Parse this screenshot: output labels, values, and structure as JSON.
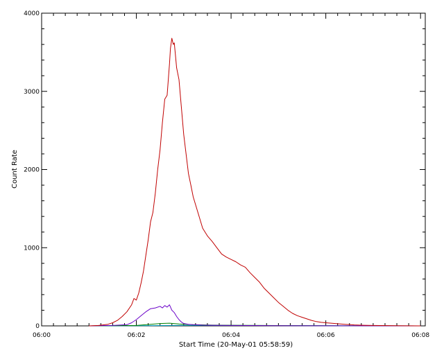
{
  "chart_data": {
    "type": "line",
    "title": "",
    "xlabel": "Start Time (20-May-01 05:58:59)",
    "ylabel": "Count Rate",
    "x_tick_labels": [
      "06:00",
      "06:02",
      "06:04",
      "06:06",
      "06:08"
    ],
    "y_tick_labels": [
      "0",
      "1000",
      "2000",
      "3000",
      "4000"
    ],
    "x_ticks_minutes": [
      0,
      2,
      4,
      6,
      8
    ],
    "y_ticks": [
      0,
      1000,
      2000,
      3000,
      4000
    ],
    "xlim_minutes_after_0600": [
      0,
      8.1
    ],
    "ylim": [
      0,
      4000
    ],
    "grid": false,
    "series": [
      {
        "color": "#c00000",
        "x_minutes_after_0600": [
          1.0,
          1.2,
          1.4,
          1.5,
          1.6,
          1.7,
          1.8,
          1.9,
          1.95,
          2.0,
          2.05,
          2.1,
          2.15,
          2.2,
          2.25,
          2.3,
          2.35,
          2.4,
          2.45,
          2.5,
          2.55,
          2.6,
          2.65,
          2.7,
          2.72,
          2.75,
          2.78,
          2.8,
          2.82,
          2.85,
          2.9,
          2.95,
          3.0,
          3.05,
          3.1,
          3.15,
          3.2,
          3.3,
          3.4,
          3.5,
          3.6,
          3.7,
          3.8,
          3.9,
          4.0,
          4.1,
          4.2,
          4.3,
          4.4,
          4.5,
          4.6,
          4.7,
          4.8,
          4.9,
          5.0,
          5.1,
          5.2,
          5.3,
          5.4,
          5.5,
          5.6,
          5.7,
          5.8,
          5.9,
          6.0,
          6.2,
          6.4,
          6.6,
          6.8,
          7.0,
          7.5,
          8.0
        ],
        "values": [
          0,
          5,
          20,
          40,
          70,
          120,
          180,
          270,
          350,
          330,
          420,
          550,
          700,
          900,
          1100,
          1330,
          1450,
          1700,
          2000,
          2250,
          2600,
          2900,
          2950,
          3350,
          3550,
          3680,
          3600,
          3620,
          3500,
          3300,
          3150,
          2800,
          2450,
          2200,
          1950,
          1800,
          1650,
          1450,
          1250,
          1150,
          1080,
          1000,
          920,
          880,
          850,
          820,
          780,
          750,
          680,
          620,
          560,
          480,
          420,
          360,
          300,
          250,
          200,
          160,
          130,
          110,
          90,
          70,
          55,
          45,
          40,
          30,
          20,
          12,
          8,
          5,
          2,
          0
        ]
      },
      {
        "color": "#6a00c8",
        "x_minutes_after_0600": [
          1.0,
          1.5,
          1.8,
          1.9,
          2.0,
          2.1,
          2.2,
          2.3,
          2.4,
          2.5,
          2.55,
          2.6,
          2.65,
          2.7,
          2.75,
          2.8,
          2.85,
          2.9,
          2.95,
          3.0,
          3.1,
          3.2,
          3.4,
          3.6,
          4.0,
          5.0,
          6.0,
          8.0
        ],
        "values": [
          0,
          5,
          15,
          40,
          80,
          130,
          180,
          220,
          230,
          250,
          230,
          260,
          240,
          270,
          200,
          170,
          120,
          80,
          50,
          30,
          20,
          15,
          10,
          8,
          5,
          3,
          1,
          0
        ]
      },
      {
        "color": "#008000",
        "x_minutes_after_0600": [
          1.0,
          2.0,
          2.3,
          2.5,
          2.7,
          2.9,
          3.2,
          3.6,
          4.0,
          5.0,
          6.0,
          8.0
        ],
        "values": [
          0,
          5,
          20,
          30,
          35,
          25,
          15,
          10,
          8,
          4,
          2,
          0
        ]
      },
      {
        "color": "#00a0c0",
        "x_minutes_after_0600": [
          1.0,
          2.0,
          3.0,
          4.0,
          5.0,
          6.0,
          7.0,
          8.0
        ],
        "values": [
          0,
          3,
          6,
          5,
          4,
          3,
          1,
          0
        ]
      }
    ]
  }
}
